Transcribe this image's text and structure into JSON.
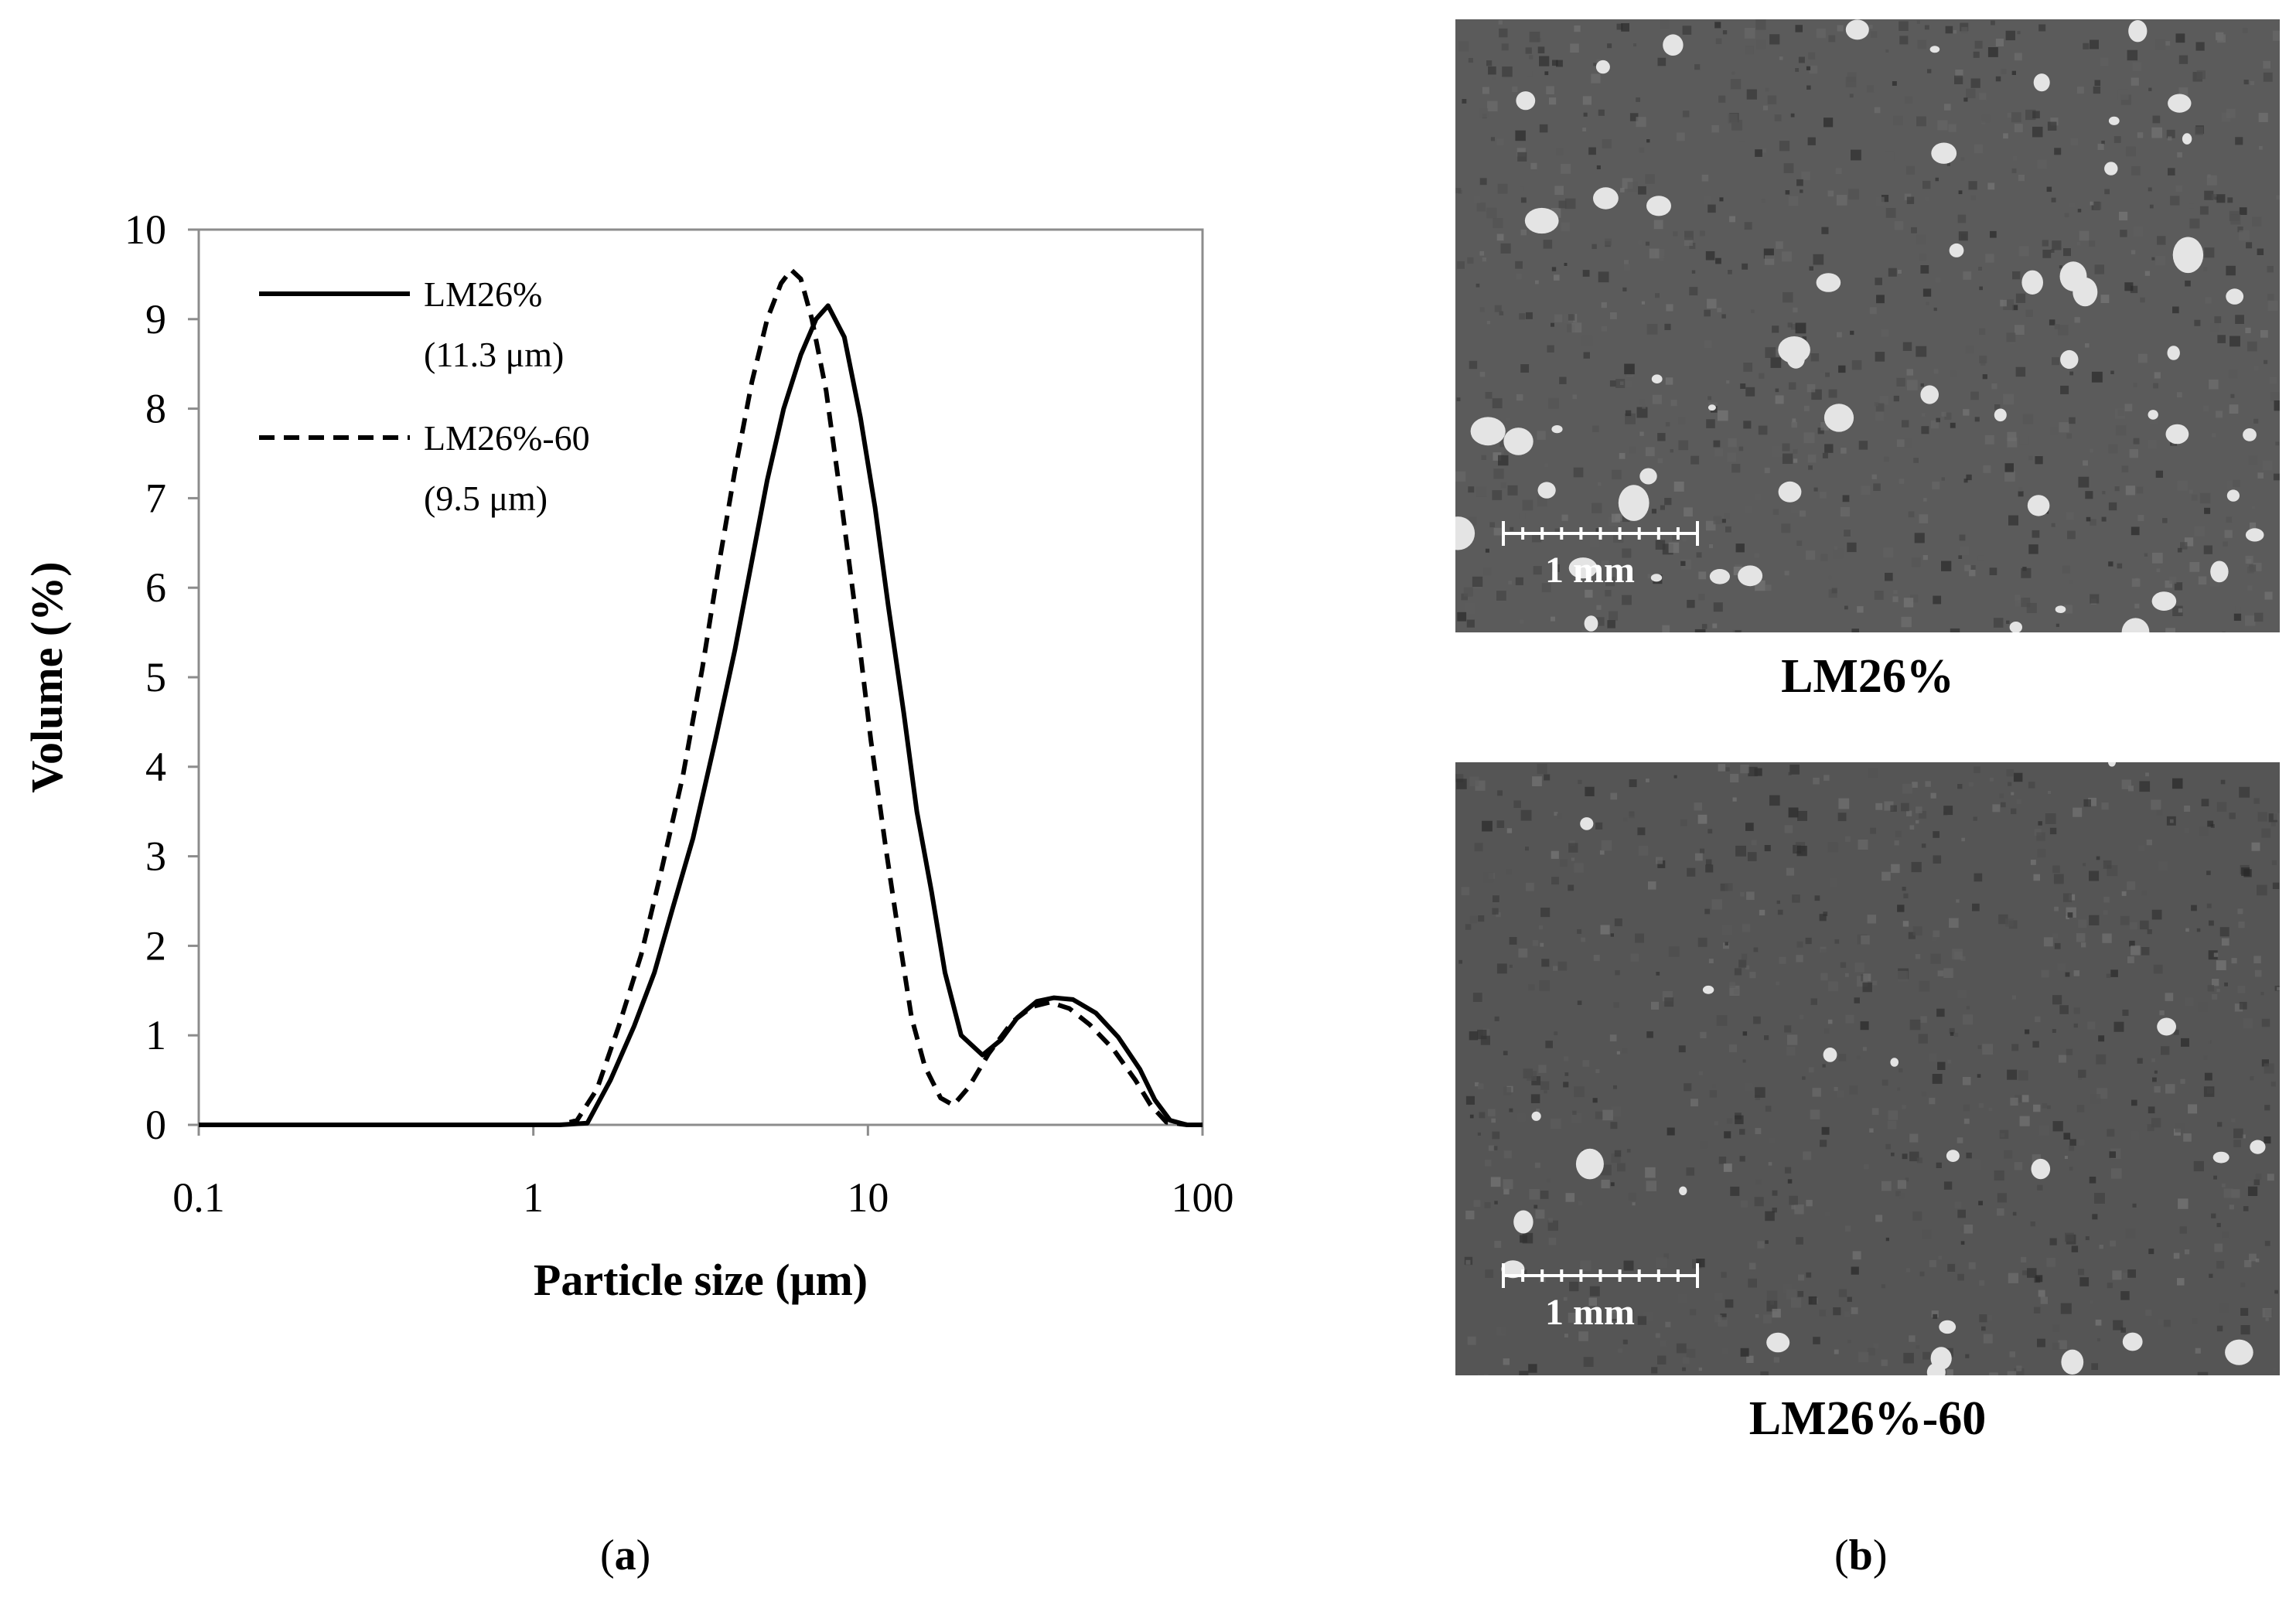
{
  "panel_labels": {
    "a": {
      "open": "(",
      "letter": "a",
      "close": ")"
    },
    "b": {
      "open": "(",
      "letter": "b",
      "close": ")"
    }
  },
  "chart_data": {
    "type": "line",
    "x_scale": "log",
    "xlabel": "Particle size (μm)",
    "ylabel": "Volume (%)",
    "xlim": [
      0.1,
      100
    ],
    "ylim": [
      0,
      10
    ],
    "x_ticks": [
      "0.1",
      "1",
      "10",
      "100"
    ],
    "y_ticks": [
      "0",
      "1",
      "2",
      "3",
      "4",
      "5",
      "6",
      "7",
      "8",
      "9",
      "10"
    ],
    "grid": false,
    "legend_position": "top-left",
    "series": [
      {
        "name": "LM26%",
        "name_line2": "(11.3 μm)",
        "style": "solid",
        "points": [
          [
            0.1,
            0
          ],
          [
            1.2,
            0
          ],
          [
            1.45,
            0.02
          ],
          [
            1.7,
            0.5
          ],
          [
            2.0,
            1.1
          ],
          [
            2.3,
            1.7
          ],
          [
            2.6,
            2.4
          ],
          [
            3.0,
            3.2
          ],
          [
            3.5,
            4.3
          ],
          [
            4.0,
            5.3
          ],
          [
            4.5,
            6.3
          ],
          [
            5.0,
            7.2
          ],
          [
            5.6,
            8.0
          ],
          [
            6.3,
            8.6
          ],
          [
            7.0,
            9.0
          ],
          [
            7.6,
            9.15
          ],
          [
            8.5,
            8.8
          ],
          [
            9.5,
            7.9
          ],
          [
            10.5,
            6.9
          ],
          [
            11.5,
            5.8
          ],
          [
            12.8,
            4.6
          ],
          [
            14.0,
            3.5
          ],
          [
            15.5,
            2.6
          ],
          [
            17.0,
            1.7
          ],
          [
            19.0,
            1.0
          ],
          [
            22.0,
            0.78
          ],
          [
            25.0,
            0.95
          ],
          [
            28.0,
            1.2
          ],
          [
            32.0,
            1.38
          ],
          [
            36.0,
            1.42
          ],
          [
            41.0,
            1.4
          ],
          [
            48.0,
            1.25
          ],
          [
            56.0,
            0.98
          ],
          [
            65.0,
            0.62
          ],
          [
            72.0,
            0.28
          ],
          [
            80.0,
            0.05
          ],
          [
            90.0,
            0
          ],
          [
            100.0,
            0
          ]
        ]
      },
      {
        "name": "LM26%-60",
        "name_line2": "(9.5 μm)",
        "style": "dashed",
        "points": [
          [
            0.1,
            0
          ],
          [
            1.2,
            0
          ],
          [
            1.35,
            0.05
          ],
          [
            1.55,
            0.4
          ],
          [
            1.8,
            1.1
          ],
          [
            2.1,
            1.9
          ],
          [
            2.4,
            2.8
          ],
          [
            2.8,
            3.9
          ],
          [
            3.2,
            5.1
          ],
          [
            3.6,
            6.3
          ],
          [
            4.0,
            7.3
          ],
          [
            4.5,
            8.3
          ],
          [
            5.0,
            9.0
          ],
          [
            5.5,
            9.4
          ],
          [
            5.9,
            9.55
          ],
          [
            6.3,
            9.45
          ],
          [
            6.8,
            9.0
          ],
          [
            7.5,
            8.2
          ],
          [
            8.3,
            7.0
          ],
          [
            9.2,
            5.7
          ],
          [
            10.2,
            4.3
          ],
          [
            11.3,
            3.1
          ],
          [
            12.5,
            2.0
          ],
          [
            13.5,
            1.2
          ],
          [
            14.8,
            0.65
          ],
          [
            16.5,
            0.3
          ],
          [
            18.0,
            0.22
          ],
          [
            20.0,
            0.42
          ],
          [
            23.0,
            0.8
          ],
          [
            27.0,
            1.15
          ],
          [
            31.0,
            1.32
          ],
          [
            35.0,
            1.37
          ],
          [
            40.0,
            1.3
          ],
          [
            46.0,
            1.12
          ],
          [
            54.0,
            0.85
          ],
          [
            63.0,
            0.5
          ],
          [
            70.0,
            0.22
          ],
          [
            78.0,
            0.03
          ],
          [
            90.0,
            0
          ],
          [
            100.0,
            0
          ]
        ]
      }
    ]
  },
  "micrographs": [
    {
      "caption": "LM26%",
      "scale_label": "1 mm",
      "dot_count": 55
    },
    {
      "caption": "LM26%-60",
      "scale_label": "1 mm",
      "dot_count": 22
    }
  ]
}
